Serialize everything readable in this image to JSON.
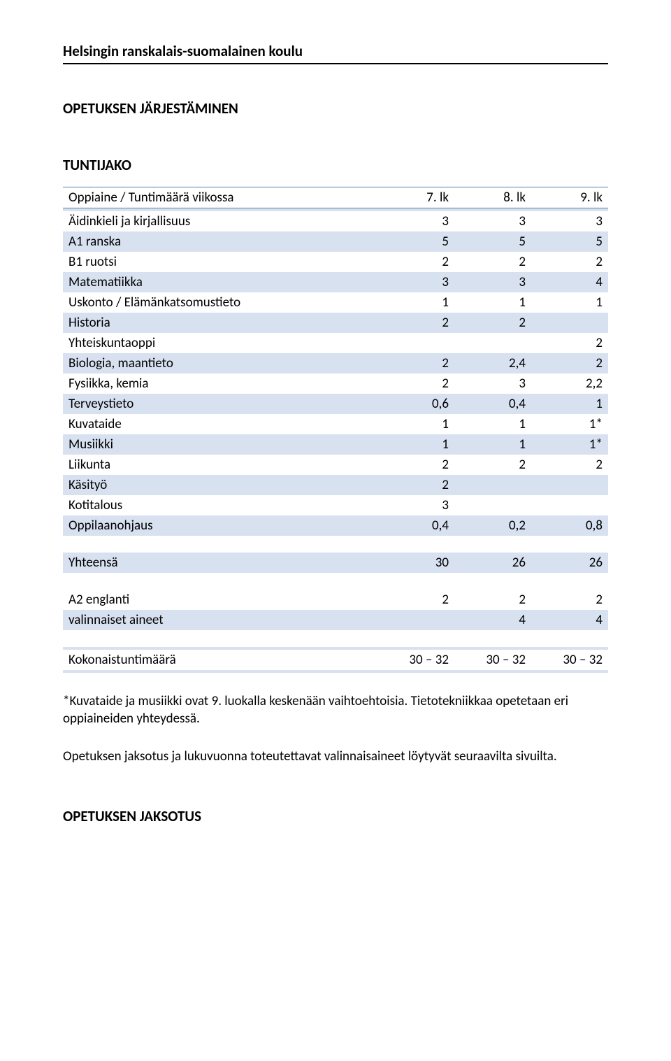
{
  "colors": {
    "row_alt": "#d7e1f0",
    "header_border": "#5a7ca8",
    "text": "#000000",
    "bg": "#ffffff"
  },
  "typography": {
    "body_fontsize_pt": 14,
    "heading_fontsize_pt": 15,
    "font_family": "Calibri"
  },
  "header": {
    "school": "Helsingin ranskalais-suomalainen koulu"
  },
  "title": "OPETUKSEN JÄRJESTÄMINEN",
  "section1": "TUNTIJAKO",
  "section2": "OPETUKSEN JAKSOTUS",
  "table": {
    "type": "table",
    "columns": [
      {
        "key": "label",
        "header": "Oppiaine / Tuntimäärä viikossa",
        "align": "left",
        "width_pct": 58
      },
      {
        "key": "c7",
        "header": "7. lk",
        "align": "right",
        "width_pct": 14
      },
      {
        "key": "c8",
        "header": "8. lk",
        "align": "right",
        "width_pct": 14
      },
      {
        "key": "c9",
        "header": "9. lk",
        "align": "right",
        "width_pct": 14
      }
    ],
    "rows_main": [
      {
        "label": "Äidinkieli ja kirjallisuus",
        "c7": "3",
        "c8": "3",
        "c9": "3"
      },
      {
        "label": "A1 ranska",
        "c7": "5",
        "c8": "5",
        "c9": "5"
      },
      {
        "label": "B1 ruotsi",
        "c7": "2",
        "c8": "2",
        "c9": "2"
      },
      {
        "label": "Matematiikka",
        "c7": "3",
        "c8": "3",
        "c9": "4"
      },
      {
        "label": "Uskonto / Elämänkatsomustieto",
        "c7": "1",
        "c8": "1",
        "c9": "1"
      },
      {
        "label": "Historia",
        "c7": "2",
        "c8": "2",
        "c9": ""
      },
      {
        "label": "Yhteiskuntaoppi",
        "c7": "",
        "c8": "",
        "c9": "2"
      },
      {
        "label": "Biologia, maantieto",
        "c7": "2",
        "c8": "2,4",
        "c9": "2"
      },
      {
        "label": "Fysiikka, kemia",
        "c7": "2",
        "c8": "3",
        "c9": "2,2"
      },
      {
        "label": "Terveystieto",
        "c7": "0,6",
        "c8": "0,4",
        "c9": "1"
      },
      {
        "label": "Kuvataide",
        "c7": "1",
        "c8": "1",
        "c9": "1*"
      },
      {
        "label": "Musiikki",
        "c7": "1",
        "c8": "1",
        "c9": "1*"
      },
      {
        "label": "Liikunta",
        "c7": "2",
        "c8": "2",
        "c9": "2"
      },
      {
        "label": "Käsityö",
        "c7": "2",
        "c8": "",
        "c9": ""
      },
      {
        "label": "Kotitalous",
        "c7": "3",
        "c8": "",
        "c9": ""
      },
      {
        "label": "Oppilaanohjaus",
        "c7": "0,4",
        "c8": "0,2",
        "c9": "0,8"
      }
    ],
    "row_total": {
      "label": "Yhteensä",
      "c7": "30",
      "c8": "26",
      "c9": "26"
    },
    "rows_opt": [
      {
        "label": "A2 englanti",
        "c7": "2",
        "c8": "2",
        "c9": "2"
      },
      {
        "label": "valinnaiset aineet",
        "c7": "",
        "c8": "4",
        "c9": "4"
      }
    ],
    "row_grand": {
      "label": "Kokonaistuntimäärä",
      "c7": "30 – 32",
      "c8": "30 – 32",
      "c9": "30 – 32"
    }
  },
  "footnote1": "*Kuvataide ja musiikki ovat 9. luokalla keskenään vaihtoehtoisia. Tietotekniikkaa opetetaan eri oppiaineiden yhteydessä.",
  "footnote2": "Opetuksen jaksotus ja lukuvuonna toteutettavat valinnaisaineet löytyvät seuraavilta sivuilta."
}
